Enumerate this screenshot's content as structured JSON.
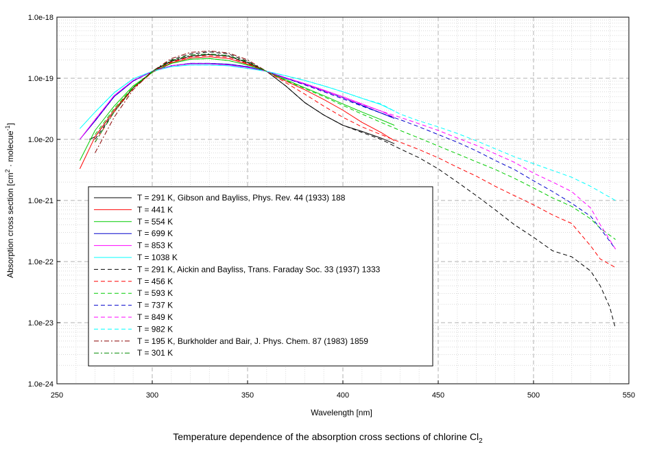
{
  "chart_data": {
    "type": "line",
    "title": "Temperature dependence of the absorption cross sections of chlorine Cl",
    "title_subscript": "2",
    "xlabel": "Wavelength [nm]",
    "ylabel_main": "Absorption cross section [cm",
    "ylabel_sup1": "2",
    "ylabel_mid": " · molecue",
    "ylabel_sup2": "-1",
    "ylabel_end": "]",
    "xscale": "linear",
    "yscale": "log",
    "xlim": [
      250,
      550
    ],
    "ylim": [
      1e-24,
      1e-18
    ],
    "x_ticks": [
      250,
      300,
      350,
      400,
      450,
      500,
      550
    ],
    "x_tick_labels": [
      "250",
      "300",
      "350",
      "400",
      "450",
      "500",
      "550"
    ],
    "y_ticks": [
      1e-24,
      1e-23,
      1e-22,
      1e-21,
      1e-20,
      1e-19,
      1e-18
    ],
    "y_tick_labels": [
      "1.0e-24",
      "1.0e-23",
      "1.0e-22",
      "1.0e-21",
      "1.0e-20",
      "1.0e-19",
      "1.0e-18"
    ],
    "grid": true,
    "legend_position": "lower-left",
    "series": [
      {
        "name": "T = 291 K, Gibson and Bayliss, Phys. Rev. 44 (1933) 188",
        "color": "#000000",
        "dash": "solid",
        "x": [
          267,
          270,
          275,
          280,
          290,
          300,
          310,
          320,
          330,
          340,
          350,
          360,
          370,
          380,
          390,
          400,
          410,
          420,
          427
        ],
        "y": [
          1e-20,
          1.1e-20,
          1.8e-20,
          3e-20,
          7e-20,
          1.3e-19,
          1.9e-19,
          2.3e-19,
          2.45e-19,
          2.3e-19,
          1.8e-19,
          1.3e-19,
          7.5e-20,
          4e-20,
          2.5e-20,
          1.7e-20,
          1.35e-20,
          1.05e-20,
          8.5e-21
        ]
      },
      {
        "name": "T = 441 K",
        "color": "#ff0000",
        "dash": "solid",
        "x": [
          262,
          270,
          280,
          290,
          300,
          310,
          320,
          330,
          340,
          350,
          360,
          370,
          380,
          390,
          400,
          410,
          420,
          427
        ],
        "y": [
          3.3e-21,
          1.1e-20,
          3e-20,
          7e-20,
          1.25e-19,
          1.8e-19,
          2.15e-19,
          2.25e-19,
          2.1e-19,
          1.7e-19,
          1.3e-19,
          9e-20,
          6.5e-20,
          4.5e-20,
          3e-20,
          1.9e-20,
          1.3e-20,
          9.5e-21
        ]
      },
      {
        "name": "T = 554 K",
        "color": "#00cc00",
        "dash": "solid",
        "x": [
          262,
          270,
          280,
          290,
          300,
          310,
          320,
          330,
          340,
          350,
          360,
          370,
          380,
          390,
          400,
          410,
          420,
          427
        ],
        "y": [
          4.5e-21,
          1.4e-20,
          3.5e-20,
          7.5e-20,
          1.25e-19,
          1.75e-19,
          2.05e-19,
          2.1e-19,
          1.95e-19,
          1.65e-19,
          1.3e-19,
          9.5e-20,
          7e-20,
          5.2e-20,
          3.8e-20,
          2.8e-20,
          2.1e-20,
          1.7e-20
        ]
      },
      {
        "name": "T = 699 K",
        "color": "#0000cc",
        "dash": "solid",
        "x": [
          262,
          270,
          280,
          290,
          300,
          310,
          320,
          330,
          340,
          350,
          360,
          370,
          380,
          390,
          400,
          410,
          420,
          427
        ],
        "y": [
          1e-20,
          2e-20,
          5e-20,
          9e-20,
          1.3e-19,
          1.6e-19,
          1.75e-19,
          1.75e-19,
          1.7e-19,
          1.55e-19,
          1.3e-19,
          1e-19,
          8e-20,
          6.2e-20,
          4.8e-20,
          3.6e-20,
          2.7e-20,
          2.2e-20
        ]
      },
      {
        "name": "T = 853 K",
        "color": "#ff00ff",
        "dash": "solid",
        "x": [
          262,
          270,
          280,
          290,
          300,
          310,
          320,
          330,
          340,
          350,
          360,
          370,
          380,
          390,
          400,
          410,
          420,
          427
        ],
        "y": [
          1e-20,
          2.1e-20,
          5.2e-20,
          9.2e-20,
          1.3e-19,
          1.6e-19,
          1.72e-19,
          1.72e-19,
          1.65e-19,
          1.5e-19,
          1.3e-19,
          1.02e-19,
          8.2e-20,
          6.4e-20,
          5e-20,
          3.8e-20,
          2.9e-20,
          2.3e-20
        ]
      },
      {
        "name": "T = 1038 K",
        "color": "#00ffff",
        "dash": "solid",
        "x": [
          262,
          270,
          280,
          290,
          300,
          310,
          320,
          330,
          340,
          350,
          360,
          370,
          380,
          390,
          400,
          410,
          420,
          427
        ],
        "y": [
          1.5e-20,
          2.8e-20,
          5.8e-20,
          9.8e-20,
          1.3e-19,
          1.55e-19,
          1.65e-19,
          1.65e-19,
          1.6e-19,
          1.45e-19,
          1.3e-19,
          1.1e-19,
          9.2e-20,
          7.5e-20,
          6e-20,
          4.7e-20,
          3.7e-20,
          2.9e-20
        ]
      },
      {
        "name": "T = 291 K, Aickin and Bayliss, Trans. Faraday Soc. 33 (1937) 1333",
        "color": "#000000",
        "dash": "dashed",
        "x": [
          270,
          280,
          290,
          300,
          310,
          320,
          330,
          340,
          350,
          360,
          370,
          380,
          390,
          400,
          410,
          420,
          430,
          440,
          450,
          460,
          470,
          480,
          490,
          500,
          510,
          520,
          530,
          535,
          540,
          543
        ],
        "y": [
          1e-20,
          2.8e-20,
          7e-20,
          1.3e-19,
          2e-19,
          2.5e-19,
          2.7e-19,
          2.5e-19,
          1.9e-19,
          1.3e-19,
          7.5e-20,
          4e-20,
          2.5e-20,
          1.7e-20,
          1.3e-20,
          1e-20,
          7e-21,
          5e-21,
          3.3e-21,
          2e-21,
          1.2e-21,
          7e-22,
          4e-22,
          2.5e-22,
          1.5e-22,
          1.2e-22,
          7e-23,
          4e-23,
          1.8e-23,
          8e-24
        ]
      },
      {
        "name": "T = 456 K",
        "color": "#ff0000",
        "dash": "dashed",
        "x": [
          270,
          280,
          290,
          300,
          310,
          320,
          330,
          340,
          350,
          360,
          370,
          380,
          390,
          400,
          410,
          420,
          430,
          440,
          450,
          460,
          470,
          480,
          490,
          500,
          510,
          520,
          530,
          535,
          543
        ],
        "y": [
          9e-21,
          2.8e-20,
          6.8e-20,
          1.25e-19,
          1.85e-19,
          2.25e-19,
          2.35e-19,
          2.2e-19,
          1.75e-19,
          1.3e-19,
          8.5e-20,
          5.5e-20,
          3.5e-20,
          2.3e-20,
          1.6e-20,
          1.2e-20,
          9e-21,
          6.8e-21,
          5e-21,
          3.5e-21,
          2.5e-21,
          1.7e-21,
          1.2e-21,
          8.5e-22,
          5.8e-22,
          4.2e-22,
          1.8e-22,
          1.1e-22,
          8e-23
        ]
      },
      {
        "name": "T = 593 K",
        "color": "#00cc00",
        "dash": "dashed",
        "x": [
          270,
          280,
          290,
          300,
          310,
          320,
          330,
          340,
          350,
          360,
          370,
          380,
          390,
          400,
          410,
          420,
          430,
          440,
          450,
          460,
          470,
          480,
          490,
          500,
          510,
          520,
          530,
          535,
          543
        ],
        "y": [
          1.2e-20,
          3.2e-20,
          7.2e-20,
          1.25e-19,
          1.75e-19,
          2.05e-19,
          2.1e-19,
          1.95e-19,
          1.65e-19,
          1.3e-19,
          9.2e-20,
          6.8e-20,
          5e-20,
          3.6e-20,
          2.6e-20,
          1.9e-20,
          1.4e-20,
          1.05e-20,
          7.8e-21,
          5.8e-21,
          4.3e-21,
          3.2e-21,
          2.3e-21,
          1.6e-21,
          1.1e-21,
          8e-22,
          5e-22,
          3.5e-22,
          2.3e-22
        ]
      },
      {
        "name": "T = 737 K",
        "color": "#0000cc",
        "dash": "dashed",
        "x": [
          270,
          280,
          290,
          300,
          310,
          320,
          330,
          340,
          350,
          360,
          370,
          380,
          390,
          400,
          410,
          420,
          430,
          440,
          450,
          460,
          470,
          480,
          490,
          500,
          510,
          520,
          530,
          535,
          543
        ],
        "y": [
          2e-20,
          5e-20,
          9e-20,
          1.3e-19,
          1.6e-19,
          1.75e-19,
          1.75e-19,
          1.7e-19,
          1.55e-19,
          1.3e-19,
          1e-19,
          7.8e-20,
          6e-20,
          4.6e-20,
          3.5e-20,
          2.7e-20,
          2.1e-20,
          1.6e-20,
          1.2e-20,
          9e-21,
          6.5e-21,
          4.5e-21,
          3.2e-21,
          2.1e-21,
          1.4e-21,
          9e-22,
          5.5e-22,
          3.5e-22,
          1.6e-22
        ]
      },
      {
        "name": "T = 849 K",
        "color": "#ff00ff",
        "dash": "dashed",
        "x": [
          270,
          280,
          290,
          300,
          310,
          320,
          330,
          340,
          350,
          360,
          370,
          380,
          390,
          400,
          410,
          420,
          430,
          440,
          450,
          460,
          470,
          480,
          490,
          500,
          510,
          520,
          530,
          535,
          543
        ],
        "y": [
          2.1e-20,
          5.2e-20,
          9.2e-20,
          1.3e-19,
          1.6e-19,
          1.72e-19,
          1.72e-19,
          1.65e-19,
          1.5e-19,
          1.3e-19,
          1.02e-19,
          8e-20,
          6.2e-20,
          4.8e-20,
          3.7e-20,
          2.9e-20,
          2.3e-20,
          1.8e-20,
          1.4e-20,
          1.05e-20,
          8e-21,
          5.8e-21,
          4.2e-21,
          2.8e-21,
          2e-21,
          1.4e-21,
          7.5e-22,
          4e-22,
          1.6e-22
        ]
      },
      {
        "name": "T = 982 K",
        "color": "#00ffff",
        "dash": "dashed",
        "x": [
          270,
          280,
          290,
          300,
          310,
          320,
          330,
          340,
          350,
          360,
          370,
          380,
          390,
          400,
          410,
          420,
          430,
          440,
          450,
          460,
          470,
          480,
          490,
          500,
          510,
          520,
          530,
          543
        ],
        "y": [
          2.8e-20,
          5.8e-20,
          9.8e-20,
          1.3e-19,
          1.55e-19,
          1.65e-19,
          1.65e-19,
          1.6e-19,
          1.45e-19,
          1.3e-19,
          1.1e-19,
          9.2e-20,
          7.5e-20,
          6e-20,
          4.7e-20,
          3.8e-20,
          2.6e-20,
          2e-20,
          1.6e-20,
          1.25e-20,
          9.5e-21,
          7e-21,
          5.2e-21,
          4e-21,
          3.1e-21,
          2.4e-21,
          1.7e-21,
          1e-21
        ]
      },
      {
        "name": "T = 195 K, Burkholder and Bair, J. Phys. Chem. 87 (1983) 1859",
        "color": "#880000",
        "dash": "dashdot",
        "x": [
          270,
          280,
          290,
          300,
          310,
          320,
          330,
          340,
          350,
          360
        ],
        "y": [
          6e-21,
          2.3e-20,
          6.5e-20,
          1.3e-19,
          2.1e-19,
          2.65e-19,
          2.8e-19,
          2.6e-19,
          2e-19,
          1.3e-19
        ]
      },
      {
        "name": "T = 301 K",
        "color": "#008800",
        "dash": "dashdot",
        "x": [
          270,
          280,
          290,
          300,
          310,
          320,
          330,
          340,
          350,
          360
        ],
        "y": [
          9e-21,
          2.8e-20,
          7e-20,
          1.3e-19,
          1.95e-19,
          2.4e-19,
          2.5e-19,
          2.35e-19,
          1.85e-19,
          1.3e-19
        ]
      }
    ]
  }
}
